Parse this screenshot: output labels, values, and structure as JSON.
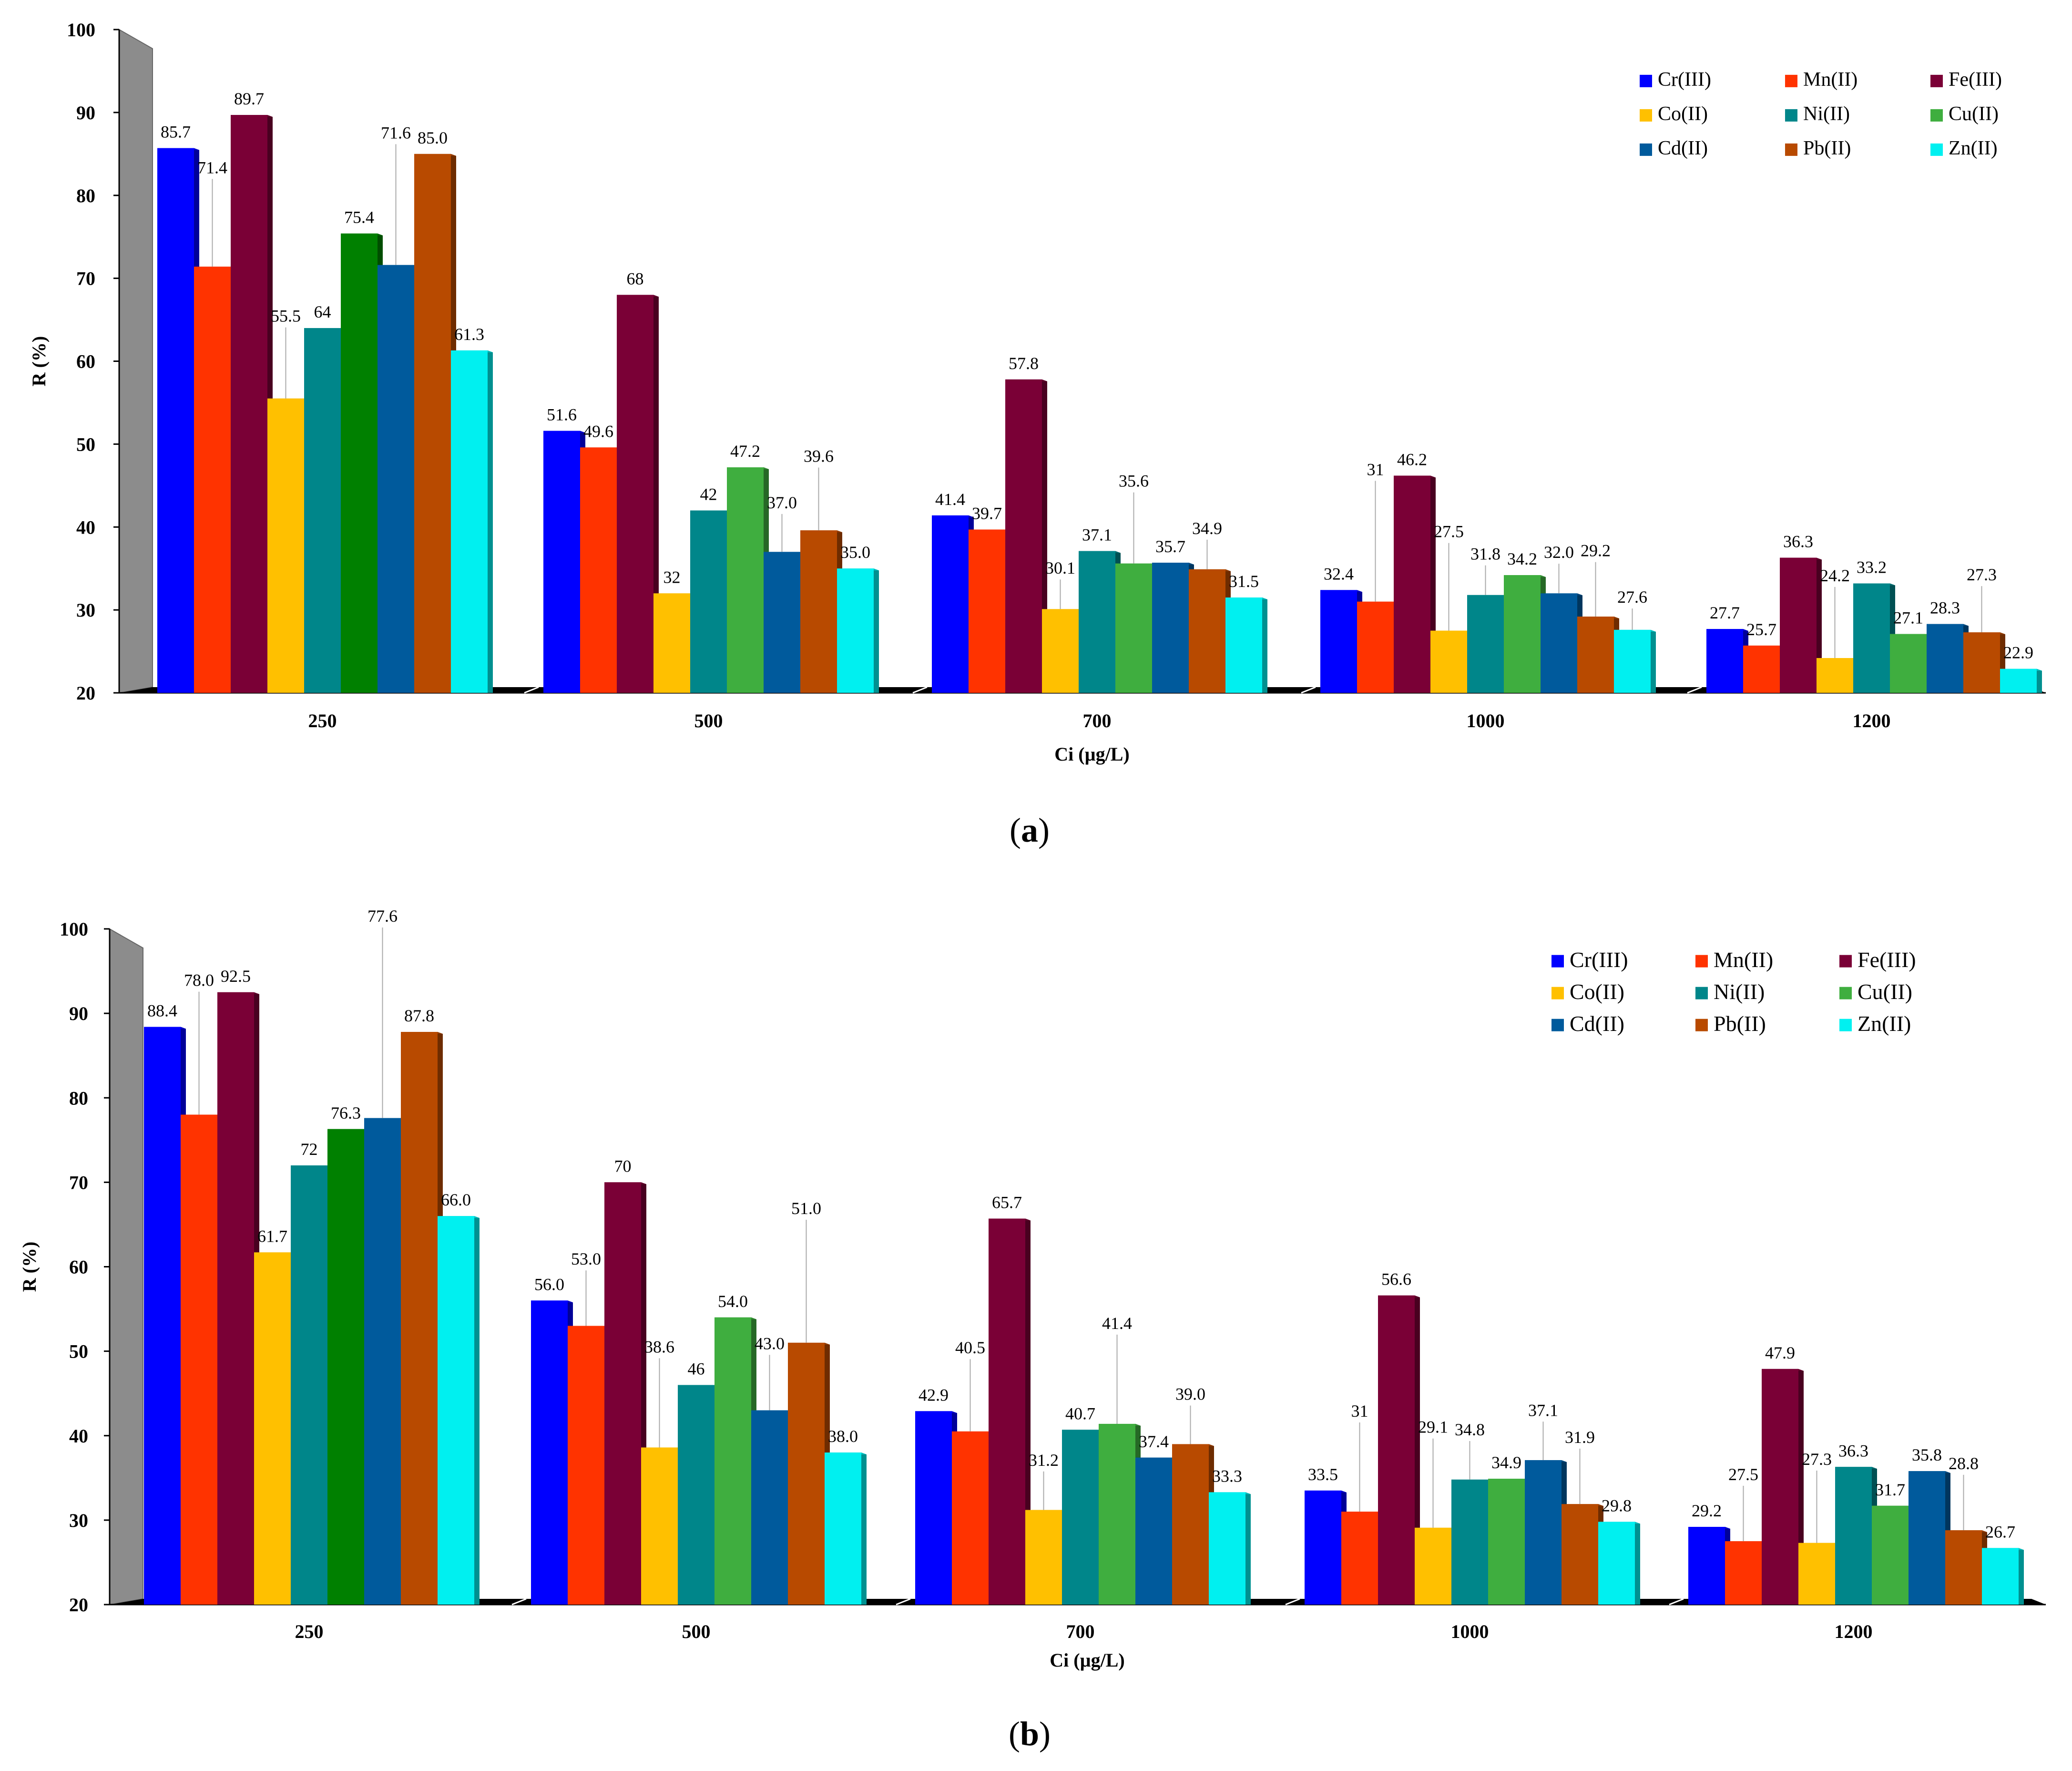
{
  "colors": {
    "Cr(III)": "#0000ff",
    "Mn(II)": "#ff3300",
    "Fe(III)": "#7a0036",
    "Co(II)": "#ffc000",
    "Ni(II)": "#00868a",
    "Cu(II)": "#3fae3f",
    "Cd(II)": "#005a9c",
    "Pb(II)": "#b84a00",
    "Zn(II)": "#00f0f0",
    "Cu(II)_250": "#008000",
    "axis": "#000000",
    "wall": "#8c8c8c"
  },
  "chart_data": [
    {
      "type": "bar",
      "panel_label": "(a)",
      "panel_letter": "a",
      "xlabel": "Ci (µg/L)",
      "ylabel": "R (%)",
      "ylim": [
        20,
        100
      ],
      "yticks": [
        "20",
        "30",
        "40",
        "50",
        "60",
        "70",
        "80",
        "90",
        "100"
      ],
      "categories": [
        "250",
        "500",
        "700",
        "1000",
        "1200"
      ],
      "legend_position": "top-right",
      "series": [
        {
          "name": "Cr(III)",
          "values": [
            85.7,
            51.6,
            41.4,
            32.4,
            27.7
          ],
          "labels": [
            "85.7",
            "51.6",
            "41.4",
            "32.4",
            "27.7"
          ]
        },
        {
          "name": "Mn(II)",
          "values": [
            71.4,
            49.6,
            39.7,
            31,
            25.7
          ],
          "labels": [
            "71.4",
            "49.6",
            "39.7",
            "31",
            "25.7"
          ]
        },
        {
          "name": "Fe(III)",
          "values": [
            89.7,
            68,
            57.8,
            46.2,
            36.3
          ],
          "labels": [
            "89.7",
            "68",
            "57.8",
            "46.2",
            "36.3"
          ]
        },
        {
          "name": "Co(II)",
          "values": [
            55.5,
            32,
            30.1,
            27.5,
            24.2
          ],
          "labels": [
            "55.5",
            "32",
            "30.1",
            "27.5",
            "24.2"
          ]
        },
        {
          "name": "Ni(II)",
          "values": [
            64,
            42,
            37.1,
            31.8,
            33.2
          ],
          "labels": [
            "64",
            "42",
            "37.1",
            "31.8",
            "33.2"
          ]
        },
        {
          "name": "Cu(II)",
          "values": [
            75.4,
            47.2,
            35.6,
            34.2,
            27.1
          ],
          "labels": [
            "75.4",
            "47.2",
            "35.6",
            "34.2",
            "27.1"
          ]
        },
        {
          "name": "Cd(II)",
          "values": [
            71.6,
            37.0,
            35.7,
            32.0,
            28.3
          ],
          "labels": [
            "71.6",
            "37.0",
            "35.7",
            "32.0",
            "28.3"
          ]
        },
        {
          "name": "Pb(II)",
          "values": [
            85.0,
            39.6,
            34.9,
            29.2,
            27.3
          ],
          "labels": [
            "85.0",
            "39.6",
            "34.9",
            "29.2",
            "27.3"
          ]
        },
        {
          "name": "Zn(II)",
          "values": [
            61.3,
            35.0,
            31.5,
            27.6,
            22.9
          ],
          "labels": [
            "61.3",
            "35.0",
            "31.5",
            "27.6",
            "22.9"
          ]
        }
      ]
    },
    {
      "type": "bar",
      "panel_label": "(b)",
      "panel_letter": "b",
      "xlabel": "Ci (µg/L)",
      "ylabel": "R (%)",
      "ylim": [
        20,
        100
      ],
      "yticks": [
        "20",
        "30",
        "40",
        "50",
        "60",
        "70",
        "80",
        "90",
        "100"
      ],
      "categories": [
        "250",
        "500",
        "700",
        "1000",
        "1200"
      ],
      "legend_position": "top-right",
      "series": [
        {
          "name": "Cr(III)",
          "values": [
            88.4,
            56.0,
            42.9,
            33.5,
            29.2
          ],
          "labels": [
            "88.4",
            "56.0",
            "42.9",
            "33.5",
            "29.2"
          ]
        },
        {
          "name": "Mn(II)",
          "values": [
            78.0,
            53.0,
            40.5,
            31,
            27.5
          ],
          "labels": [
            "78.0",
            "53.0",
            "40.5",
            "31",
            "27.5"
          ]
        },
        {
          "name": "Fe(III)",
          "values": [
            92.5,
            70,
            65.7,
            56.6,
            47.9
          ],
          "labels": [
            "92.5",
            "70",
            "65.7",
            "56.6",
            "47.9"
          ]
        },
        {
          "name": "Co(II)",
          "values": [
            61.7,
            38.6,
            31.2,
            29.1,
            27.3
          ],
          "labels": [
            "61.7",
            "38.6",
            "31.2",
            "29.1",
            "27.3"
          ]
        },
        {
          "name": "Ni(II)",
          "values": [
            72,
            46,
            40.7,
            34.8,
            36.3
          ],
          "labels": [
            "72",
            "46",
            "40.7",
            "34.8",
            "36.3"
          ]
        },
        {
          "name": "Cu(II)",
          "values": [
            76.3,
            54.0,
            41.4,
            34.9,
            31.7
          ],
          "labels": [
            "76.3",
            "54.0",
            "41.4",
            "34.9",
            "31.7"
          ]
        },
        {
          "name": "Cd(II)",
          "values": [
            77.6,
            43.0,
            37.4,
            37.1,
            35.8
          ],
          "labels": [
            "77.6",
            "43.0",
            "37.4",
            "37.1",
            "35.8"
          ]
        },
        {
          "name": "Pb(II)",
          "values": [
            87.8,
            51.0,
            39.0,
            31.9,
            28.8
          ],
          "labels": [
            "87.8",
            "51.0",
            "39.0",
            "31.9",
            "28.8"
          ]
        },
        {
          "name": "Zn(II)",
          "values": [
            66.0,
            38.0,
            33.3,
            29.8,
            26.7
          ],
          "labels": [
            "66.0",
            "38.0",
            "33.3",
            "29.8",
            "26.7"
          ]
        }
      ]
    }
  ]
}
